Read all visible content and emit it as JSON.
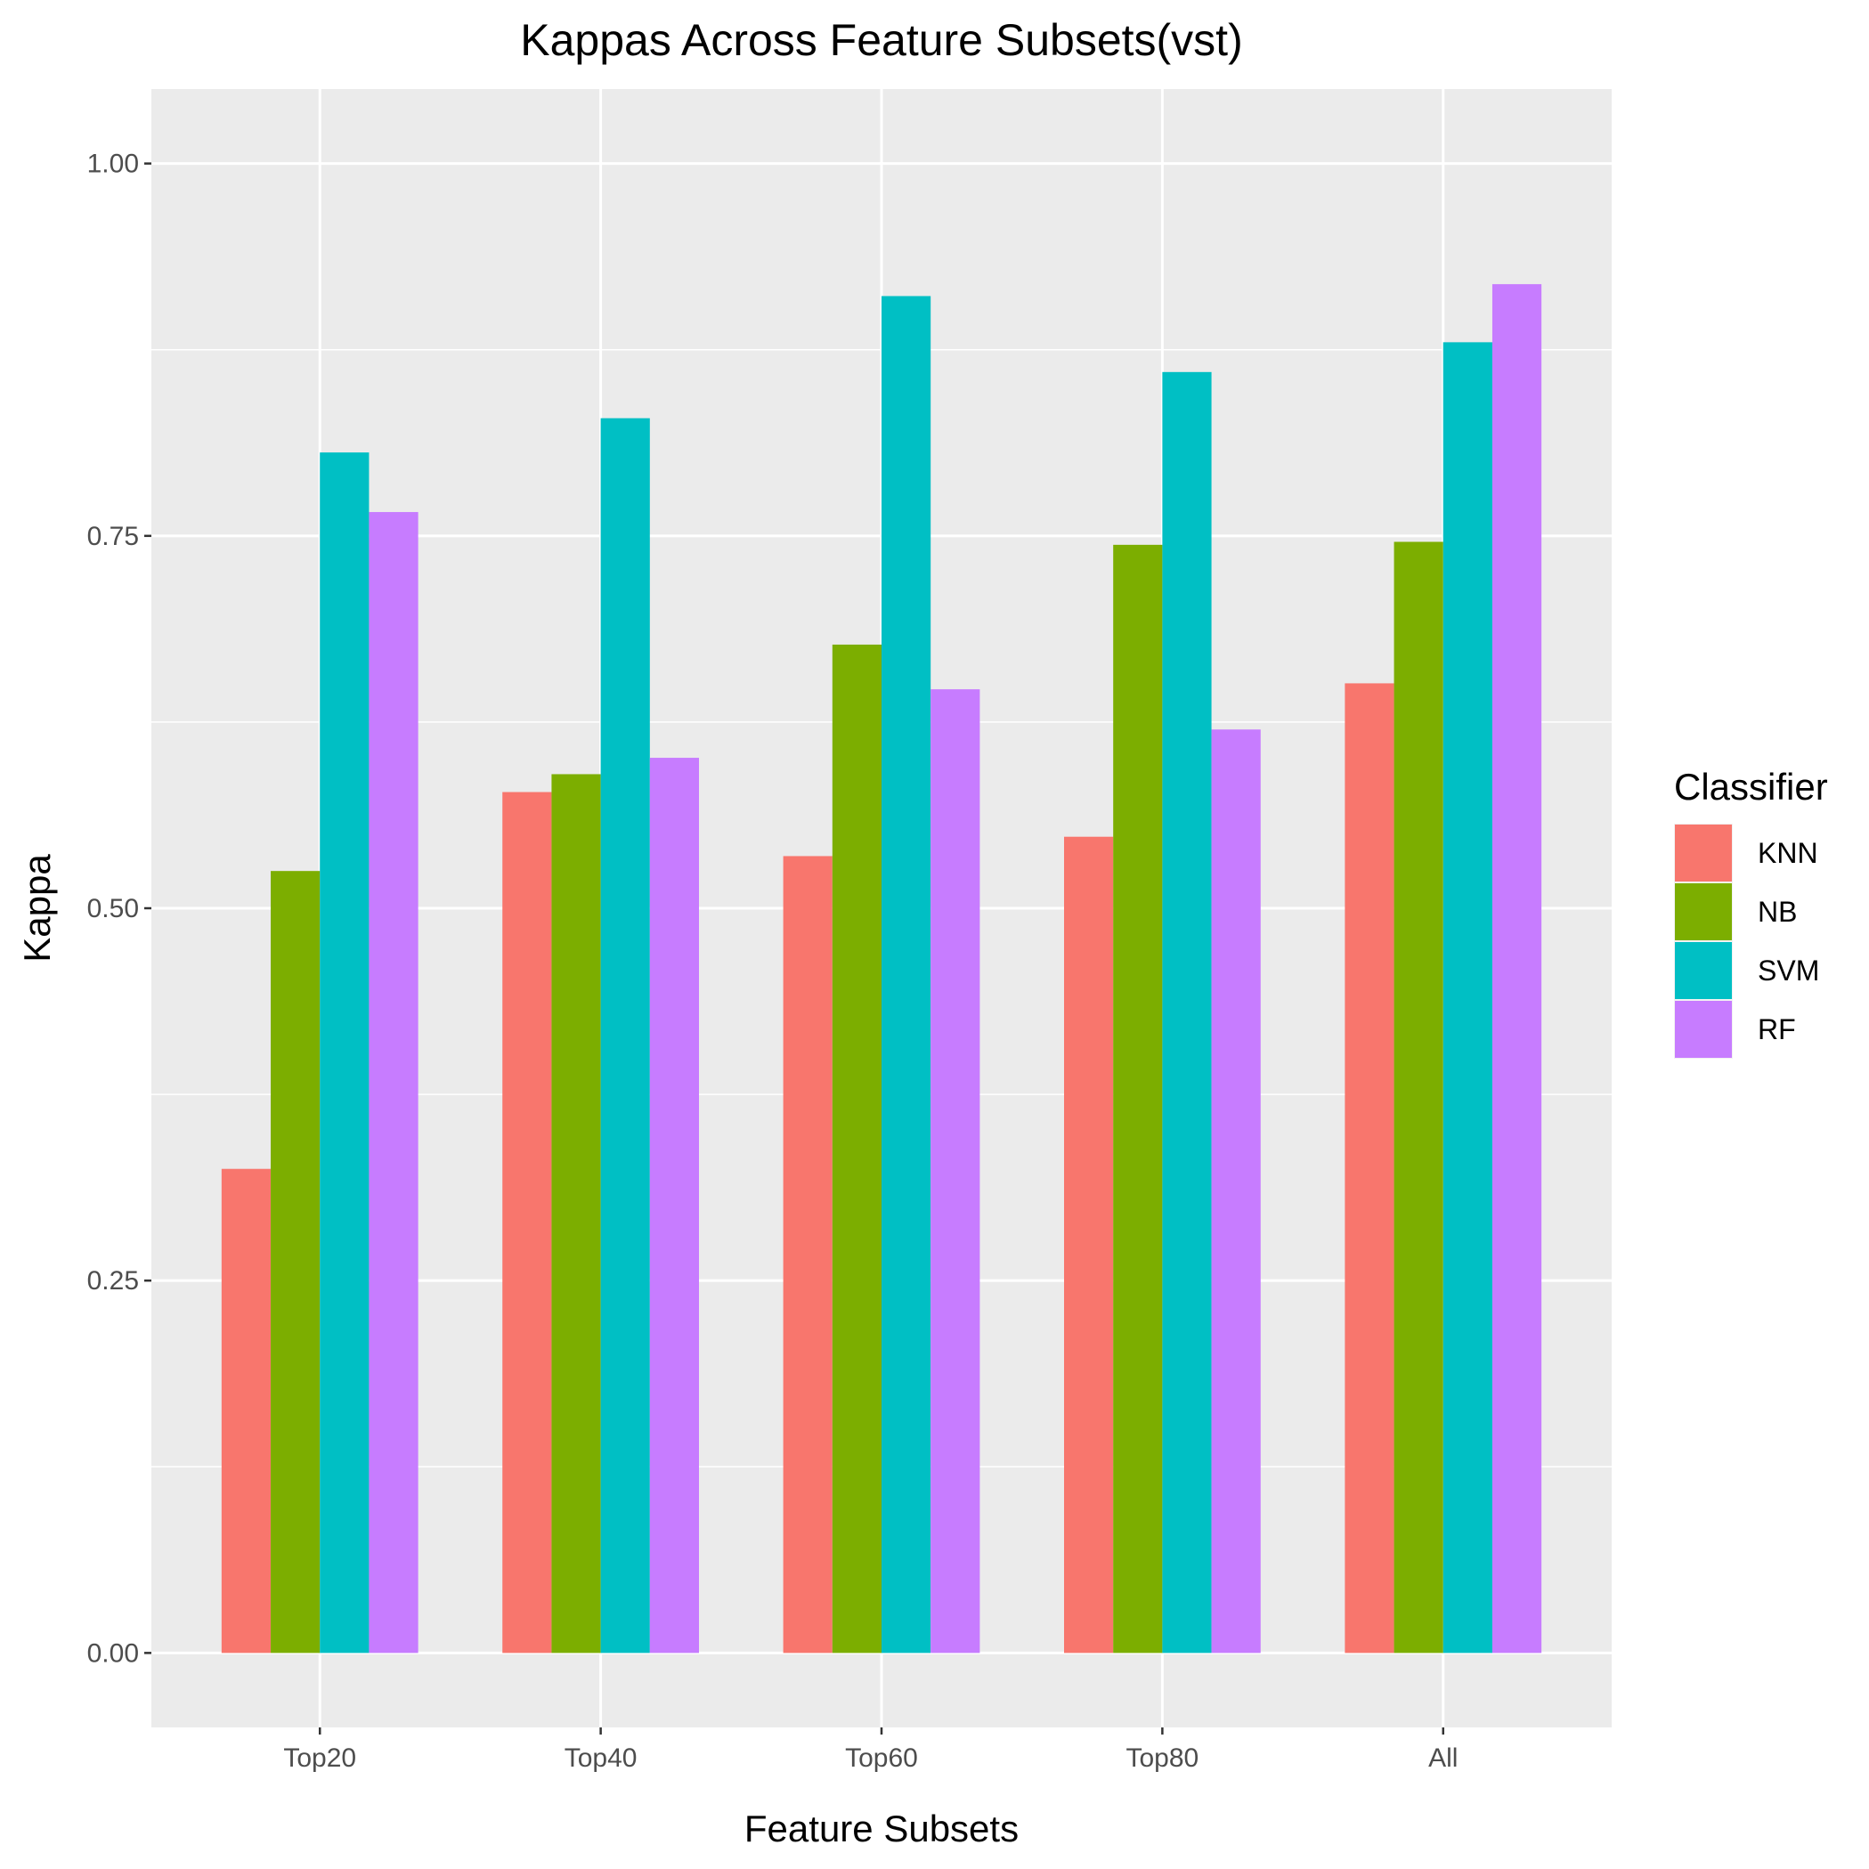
{
  "chart_data": {
    "type": "bar",
    "title": "Kappas Across Feature Subsets(vst)",
    "xlabel": "Feature Subsets",
    "ylabel": "Kappa",
    "categories": [
      "Top20",
      "Top40",
      "Top60",
      "Top80",
      "All"
    ],
    "ylim": [
      -0.05,
      1.05
    ],
    "yticks": [
      "0.00",
      "0.25",
      "0.50",
      "0.75",
      "1.00"
    ],
    "grid": true,
    "legend": {
      "title": "Classifier",
      "position": "right"
    },
    "series": [
      {
        "name": "KNN",
        "color": "#F8766D",
        "values": [
          0.325,
          0.578,
          0.535,
          0.548,
          0.651
        ]
      },
      {
        "name": "NB",
        "color": "#7CAE00",
        "values": [
          0.525,
          0.59,
          0.677,
          0.744,
          0.746
        ]
      },
      {
        "name": "SVM",
        "color": "#00BFC4",
        "values": [
          0.806,
          0.829,
          0.911,
          0.86,
          0.88
        ]
      },
      {
        "name": "RF",
        "color": "#C77CFF",
        "values": [
          0.766,
          0.601,
          0.647,
          0.62,
          0.919
        ]
      }
    ]
  }
}
